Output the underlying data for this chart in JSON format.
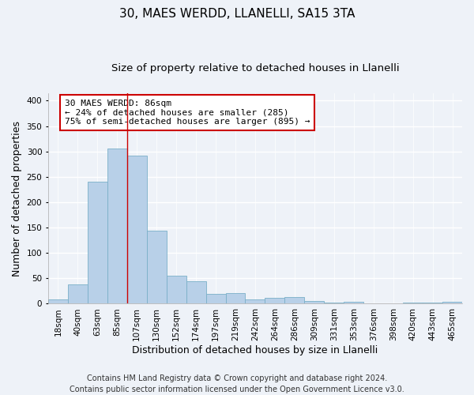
{
  "title": "30, MAES WERDD, LLANELLI, SA15 3TA",
  "subtitle": "Size of property relative to detached houses in Llanelli",
  "xlabel": "Distribution of detached houses by size in Llanelli",
  "ylabel": "Number of detached properties",
  "bar_labels": [
    "18sqm",
    "40sqm",
    "63sqm",
    "85sqm",
    "107sqm",
    "130sqm",
    "152sqm",
    "174sqm",
    "197sqm",
    "219sqm",
    "242sqm",
    "264sqm",
    "286sqm",
    "309sqm",
    "331sqm",
    "353sqm",
    "376sqm",
    "398sqm",
    "420sqm",
    "443sqm",
    "465sqm"
  ],
  "bar_values": [
    8,
    38,
    240,
    305,
    291,
    144,
    55,
    45,
    20,
    21,
    9,
    11,
    13,
    5,
    3,
    4,
    1,
    0,
    2,
    3,
    4
  ],
  "bar_color": "#b8d0e8",
  "bar_edgecolor": "#7aafc8",
  "bar_linewidth": 0.6,
  "vline_x_idx": 3,
  "vline_color": "#cc0000",
  "ylim": [
    0,
    415
  ],
  "yticks": [
    0,
    50,
    100,
    150,
    200,
    250,
    300,
    350,
    400
  ],
  "annotation_title": "30 MAES WERDD: 86sqm",
  "annotation_line1": "← 24% of detached houses are smaller (285)",
  "annotation_line2": "75% of semi-detached houses are larger (895) →",
  "annotation_box_facecolor": "#ffffff",
  "annotation_box_edgecolor": "#cc0000",
  "footer_line1": "Contains HM Land Registry data © Crown copyright and database right 2024.",
  "footer_line2": "Contains public sector information licensed under the Open Government Licence v3.0.",
  "background_color": "#eef2f8",
  "grid_color": "#ffffff",
  "title_fontsize": 11,
  "subtitle_fontsize": 9.5,
  "axis_label_fontsize": 9,
  "tick_fontsize": 7.5,
  "annotation_fontsize": 8,
  "footer_fontsize": 7
}
